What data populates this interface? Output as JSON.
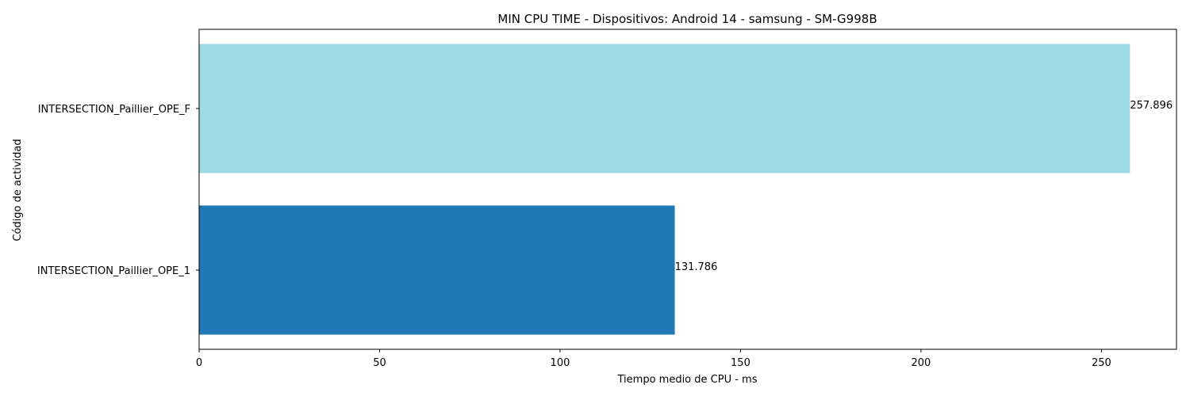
{
  "chart_data": {
    "type": "bar",
    "orientation": "horizontal",
    "title": "MIN CPU TIME - Dispositivos: Android 14 - samsung - SM-G998B",
    "xlabel": "Tiempo medio de CPU - ms",
    "ylabel": "Código de actividad",
    "categories": [
      "INTERSECTION_Paillier_OPE_1",
      "INTERSECTION_Paillier_OPE_F"
    ],
    "values": [
      131.786,
      257.896
    ],
    "value_labels": [
      "131.786",
      "257.896"
    ],
    "colors": [
      "#1f77b4",
      "#9edae5"
    ],
    "xlim": [
      0,
      270.79
    ],
    "xticks": [
      0,
      50,
      100,
      150,
      200,
      250
    ],
    "grid": false,
    "legend": "none"
  }
}
